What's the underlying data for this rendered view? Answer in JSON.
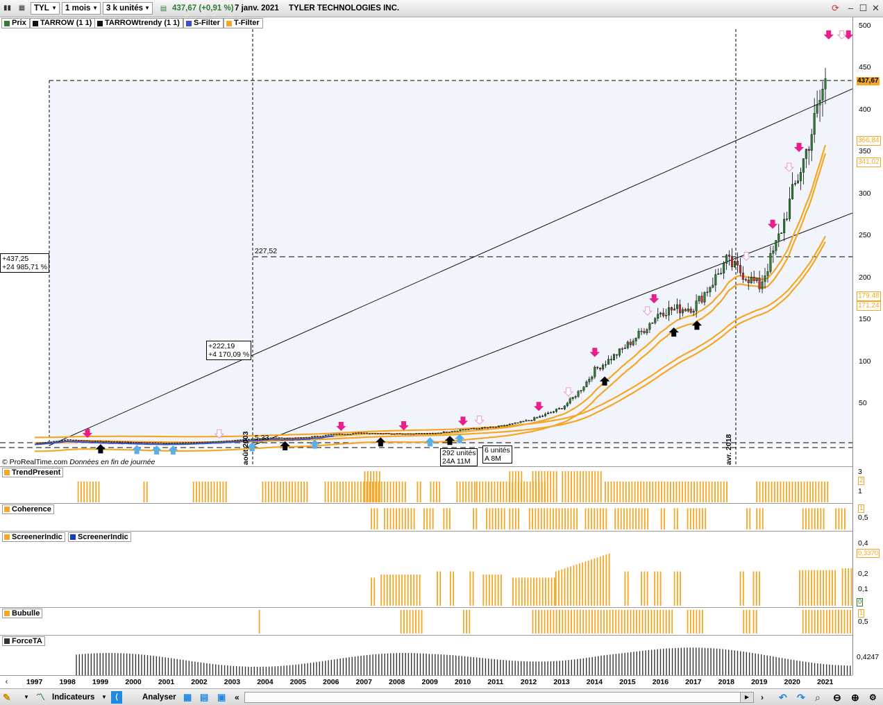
{
  "toolbar": {
    "symbol": "TYL",
    "period": "1 mois",
    "units": "3 k unités",
    "price_change": "437,67 (+0,91 %)",
    "date": "7 janv. 2021",
    "company": "TYLER TECHNOLOGIES INC."
  },
  "legend": [
    {
      "label": "Prix",
      "color": "#2e7d32"
    },
    {
      "label": "TARROW (1 1)",
      "color": "#111111"
    },
    {
      "label": "TARROWtrendy (1 1)",
      "color": "#111111"
    },
    {
      "label": "S-Filter",
      "color": "#3b4fd0"
    },
    {
      "label": "T-Filter",
      "color": "#f5a623"
    }
  ],
  "annotations": {
    "box_left_1": "+437,25",
    "box_left_2": "+24 985,71 %",
    "box_mid_1": "+222,19",
    "box_mid_2": "+4 170,09 %",
    "label_22752": "227,52",
    "label_533": "5,33",
    "vol_box1_1": "292 unités",
    "vol_box1_2": "24A 11M",
    "vol_box2_1": "6 unités",
    "vol_box2_2": "A 8M",
    "vline1": "août 2003",
    "vline2": "avr. 2018",
    "watermark": "© ProRealTime.com",
    "watermark_note": "Données en fin de journée"
  },
  "price_axis": {
    "ticks": [
      "500",
      "450",
      "400",
      "350",
      "300",
      "250",
      "200",
      "150",
      "100",
      "50"
    ],
    "tag_price": "437,67",
    "tag_a": "366,84",
    "tag_b": "341,02",
    "tag_c": "179,48",
    "tag_d": "171,24"
  },
  "panels": {
    "trend": {
      "label": "TrendPresent",
      "ticks": [
        "3",
        "2",
        "1"
      ]
    },
    "coherence": {
      "label": "Coherence",
      "ticks": [
        "1",
        "0,5"
      ]
    },
    "screener": {
      "label": "ScreenerIndic",
      "label2": "ScreenerIndic",
      "ticks": [
        "0,4",
        "0,3370",
        "0,2",
        "0,1",
        "0"
      ]
    },
    "bubulle": {
      "label": "Bubulle",
      "ticks": [
        "1",
        "0,5"
      ]
    },
    "force": {
      "label": "ForceTA",
      "ticks": [
        "0,4247"
      ]
    }
  },
  "colors": {
    "bars": "#f5a623",
    "up": "#2e7d32",
    "down": "#d32f2f",
    "tfilter": "#f5a623",
    "sfilter": "#3b4fd0",
    "arrow_pink": "#e91e8c"
  },
  "bottom": {
    "indicators": "Indicateurs",
    "analyser": "Analyser"
  },
  "chart_data": {
    "type": "line",
    "title": "TYLER TECHNOLOGIES INC.",
    "x": [
      "1997",
      "1998",
      "1999",
      "2000",
      "2001",
      "2002",
      "2003",
      "2004",
      "2005",
      "2006",
      "2007",
      "2008",
      "2009",
      "2010",
      "2011",
      "2012",
      "2013",
      "2014",
      "2015",
      "2016",
      "2017",
      "2018",
      "2019",
      "2020",
      "2021"
    ],
    "series": [
      {
        "name": "Prix",
        "values": [
          3,
          7,
          5,
          4,
          3,
          4,
          6,
          9,
          9,
          13,
          15,
          14,
          14,
          19,
          22,
          30,
          45,
          90,
          120,
          160,
          165,
          220,
          190,
          300,
          437
        ]
      }
    ],
    "ylim": [
      0,
      520
    ],
    "grid": false,
    "legend_position": "top-left"
  }
}
